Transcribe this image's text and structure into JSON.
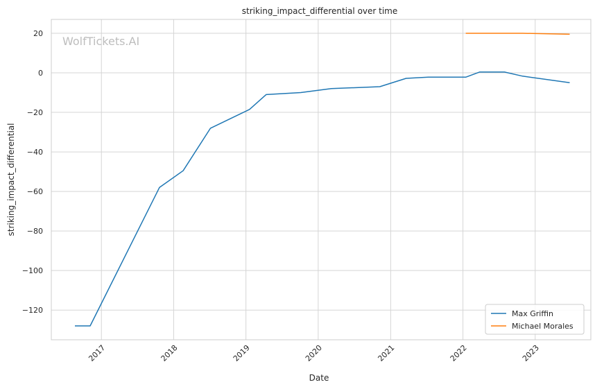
{
  "chart_data": {
    "type": "line",
    "title": "striking_impact_differential over time",
    "xlabel": "Date",
    "ylabel": "striking_impact_differential",
    "watermark": "WolfTickets.AI",
    "x_axis": "date",
    "xlim": [
      "2016-04-23",
      "2023-10-09"
    ],
    "ylim": [
      -135,
      27
    ],
    "x_ticks": [
      "2017",
      "2018",
      "2019",
      "2020",
      "2021",
      "2022",
      "2023"
    ],
    "y_ticks": [
      20,
      0,
      -20,
      -40,
      -60,
      -80,
      -100,
      -120
    ],
    "y_tick_labels": [
      "20",
      "0",
      "−20",
      "−40",
      "−60",
      "−80",
      "−100",
      "−120"
    ],
    "grid": true,
    "legend": "lower-right",
    "series": [
      {
        "name": "Max Griffin",
        "color": "#1f77b4",
        "points": [
          {
            "x": "2016-08-20",
            "y": -128
          },
          {
            "x": "2016-11-05",
            "y": -128
          },
          {
            "x": "2017-10-21",
            "y": -58
          },
          {
            "x": "2018-02-18",
            "y": -49.5
          },
          {
            "x": "2018-07-06",
            "y": -28
          },
          {
            "x": "2019-01-19",
            "y": -18.5
          },
          {
            "x": "2019-04-13",
            "y": -11
          },
          {
            "x": "2019-10-05",
            "y": -10
          },
          {
            "x": "2020-03-07",
            "y": -8
          },
          {
            "x": "2020-11-07",
            "y": -7
          },
          {
            "x": "2021-03-20",
            "y": -2.8
          },
          {
            "x": "2021-07-10",
            "y": -2.2
          },
          {
            "x": "2022-01-15",
            "y": -2.2
          },
          {
            "x": "2022-03-26",
            "y": 0.4
          },
          {
            "x": "2022-07-30",
            "y": 0.4
          },
          {
            "x": "2022-10-29",
            "y": -1.7
          },
          {
            "x": "2023-06-24",
            "y": -5
          }
        ]
      },
      {
        "name": "Michael Morales",
        "color": "#ff7f0e",
        "points": [
          {
            "x": "2022-01-15",
            "y": 20
          },
          {
            "x": "2022-10-29",
            "y": 20
          },
          {
            "x": "2023-06-24",
            "y": 19.5
          }
        ]
      }
    ]
  }
}
